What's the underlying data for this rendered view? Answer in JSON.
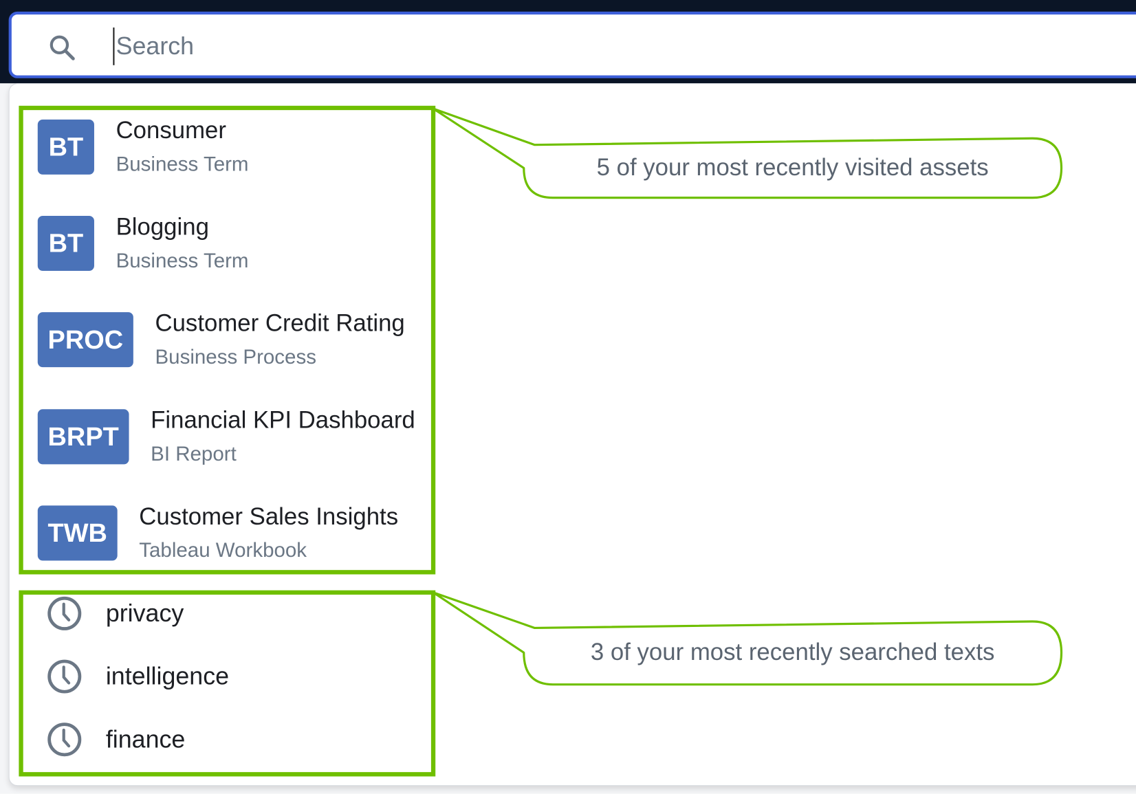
{
  "search": {
    "placeholder": "Search",
    "value": "",
    "icon": "search-icon"
  },
  "recent_assets": [
    {
      "badge": "BT",
      "title": "Consumer",
      "type": "Business Term"
    },
    {
      "badge": "BT",
      "title": "Blogging",
      "type": "Business Term"
    },
    {
      "badge": "PROC",
      "title": "Customer Credit Rating",
      "type": "Business Process"
    },
    {
      "badge": "BRPT",
      "title": "Financial KPI Dashboard",
      "type": "BI Report"
    },
    {
      "badge": "TWB",
      "title": "Customer Sales Insights",
      "type": "Tableau Workbook"
    }
  ],
  "recent_searches": [
    {
      "text": "privacy",
      "icon": "clock-icon"
    },
    {
      "text": "intelligence",
      "icon": "clock-icon"
    },
    {
      "text": "finance",
      "icon": "clock-icon"
    }
  ],
  "annotations": {
    "assets_callout": "5 of your most recently visited assets",
    "searches_callout": "3 of your most recently searched texts"
  },
  "colors": {
    "badge": "#4a72b8",
    "highlight": "#6fbf00",
    "focus_border": "#3d5fd9",
    "topbar": "#0b1526"
  }
}
